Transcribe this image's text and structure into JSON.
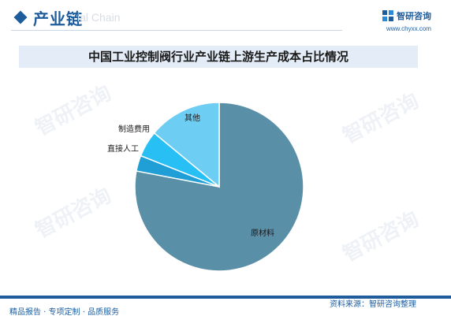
{
  "header": {
    "title": "产业链",
    "subtitle": "ial Chain"
  },
  "brand": {
    "name": "智研咨询",
    "url": "www.chyxx.com",
    "watermark": "智研咨询"
  },
  "chart_data": {
    "type": "pie",
    "title": "中国工业控制阀行业产业链上游生产成本占比情况",
    "slices": [
      {
        "label": "原材料",
        "value": 78,
        "color": "#5a8fa8"
      },
      {
        "label": "直接人工",
        "value": 3,
        "color": "#1f9fd6"
      },
      {
        "label": "制造费用",
        "value": 5,
        "color": "#28c0f4"
      },
      {
        "label": "其他",
        "value": 14,
        "color": "#6dcdf3"
      }
    ],
    "start_angle_deg": 0,
    "direction": "clockwise",
    "legend": "none"
  },
  "footer": {
    "left": "精品报告 · 专项定制 · 品质服务",
    "right": "资料来源：智研咨询整理"
  },
  "colors": {
    "brand_blue": "#1e5c9c",
    "title_bar": "#e4edf7"
  }
}
